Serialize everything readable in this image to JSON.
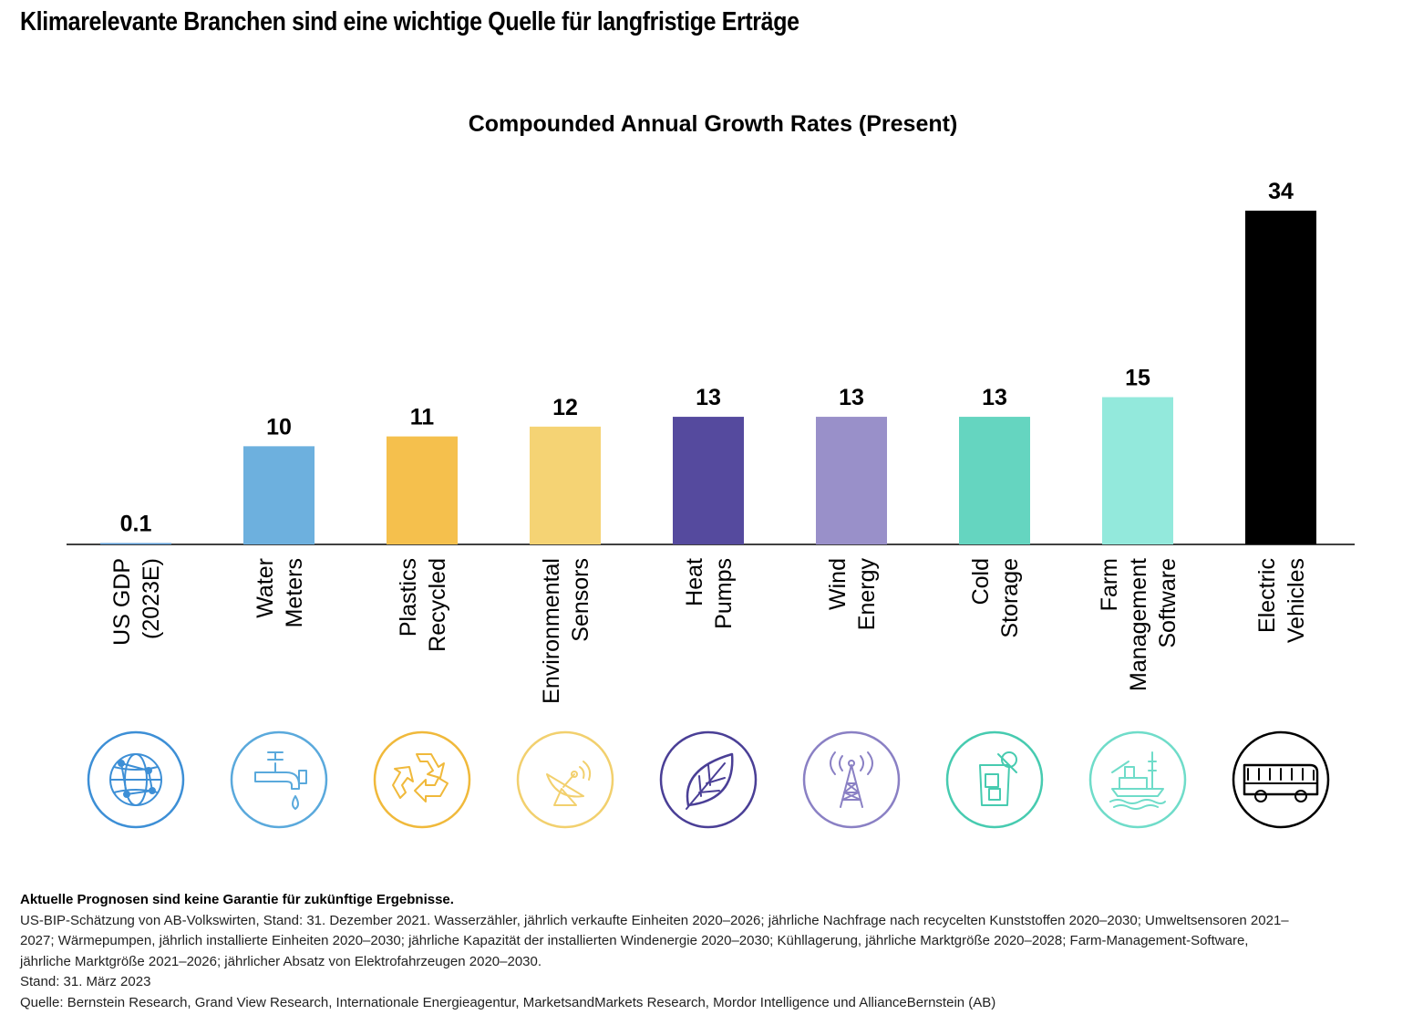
{
  "headline": "Klimarelevante Branchen sind eine wichtige Quelle für langfristige Erträge",
  "chart_data": {
    "type": "bar",
    "title": "Compounded Annual Growth Rates (Present)",
    "categories": [
      [
        "US GDP",
        "(2023E)"
      ],
      [
        "Water",
        "Meters"
      ],
      [
        "Plastics",
        "Recycled"
      ],
      [
        "Environmental",
        "Sensors"
      ],
      [
        "Heat",
        "Pumps"
      ],
      [
        "Wind",
        "Energy"
      ],
      [
        "Cold",
        "Storage"
      ],
      [
        "Farm",
        "Management",
        "Software"
      ],
      [
        "Electric",
        "Vehicles"
      ]
    ],
    "values": [
      0.1,
      10,
      11,
      12,
      13,
      13,
      13,
      15,
      34
    ],
    "value_labels": [
      "0.1",
      "10",
      "11",
      "12",
      "13",
      "13",
      "13",
      "15",
      "34"
    ],
    "colors": [
      "#5b9bd5",
      "#6db0de",
      "#f5c04d",
      "#f5d374",
      "#554a9e",
      "#9990c9",
      "#65d5c0",
      "#93e9dc",
      "#000000"
    ],
    "icons": [
      "globe-icon",
      "water-tap-icon",
      "recycle-icon",
      "satellite-dish-icon",
      "leaf-icon",
      "wind-tower-icon",
      "cold-drink-icon",
      "oil-platform-icon",
      "bus-icon"
    ],
    "icon_colors": [
      "#3d8fd6",
      "#5aa9dc",
      "#f0b93b",
      "#f2d06e",
      "#4a3f96",
      "#8a80c4",
      "#47cbb0",
      "#6fdcc9",
      "#000000"
    ],
    "ylim": [
      0,
      34
    ],
    "grid": false,
    "legend": "none"
  },
  "notes": {
    "disclaimer": "Aktuelle Prognosen sind keine Garantie für zukünftige Ergebnisse.",
    "lines": [
      "US-BIP-Schätzung von AB-Volkswirten, Stand: 31. Dezember 2021. Wasserzähler, jährlich verkaufte Einheiten 2020–2026; jährliche Nachfrage nach recycelten Kunststoffen 2020–2030; Umweltsensoren 2021–",
      "2027; Wärmepumpen, jährlich installierte Einheiten 2020–2030; jährliche Kapazität der installierten Windenergie 2020–2030; Kühllagerung, jährliche Marktgröße 2020–2028; Farm-Management-Software,",
      "jährliche Marktgröße 2021–2026; jährlicher Absatz von Elektrofahrzeugen 2020–2030."
    ],
    "date": "Stand: 31. März 2023",
    "source": "Quelle: Bernstein Research, Grand View Research, Internationale Energieagentur, MarketsandMarkets Research, Mordor Intelligence und AllianceBernstein (AB)"
  }
}
